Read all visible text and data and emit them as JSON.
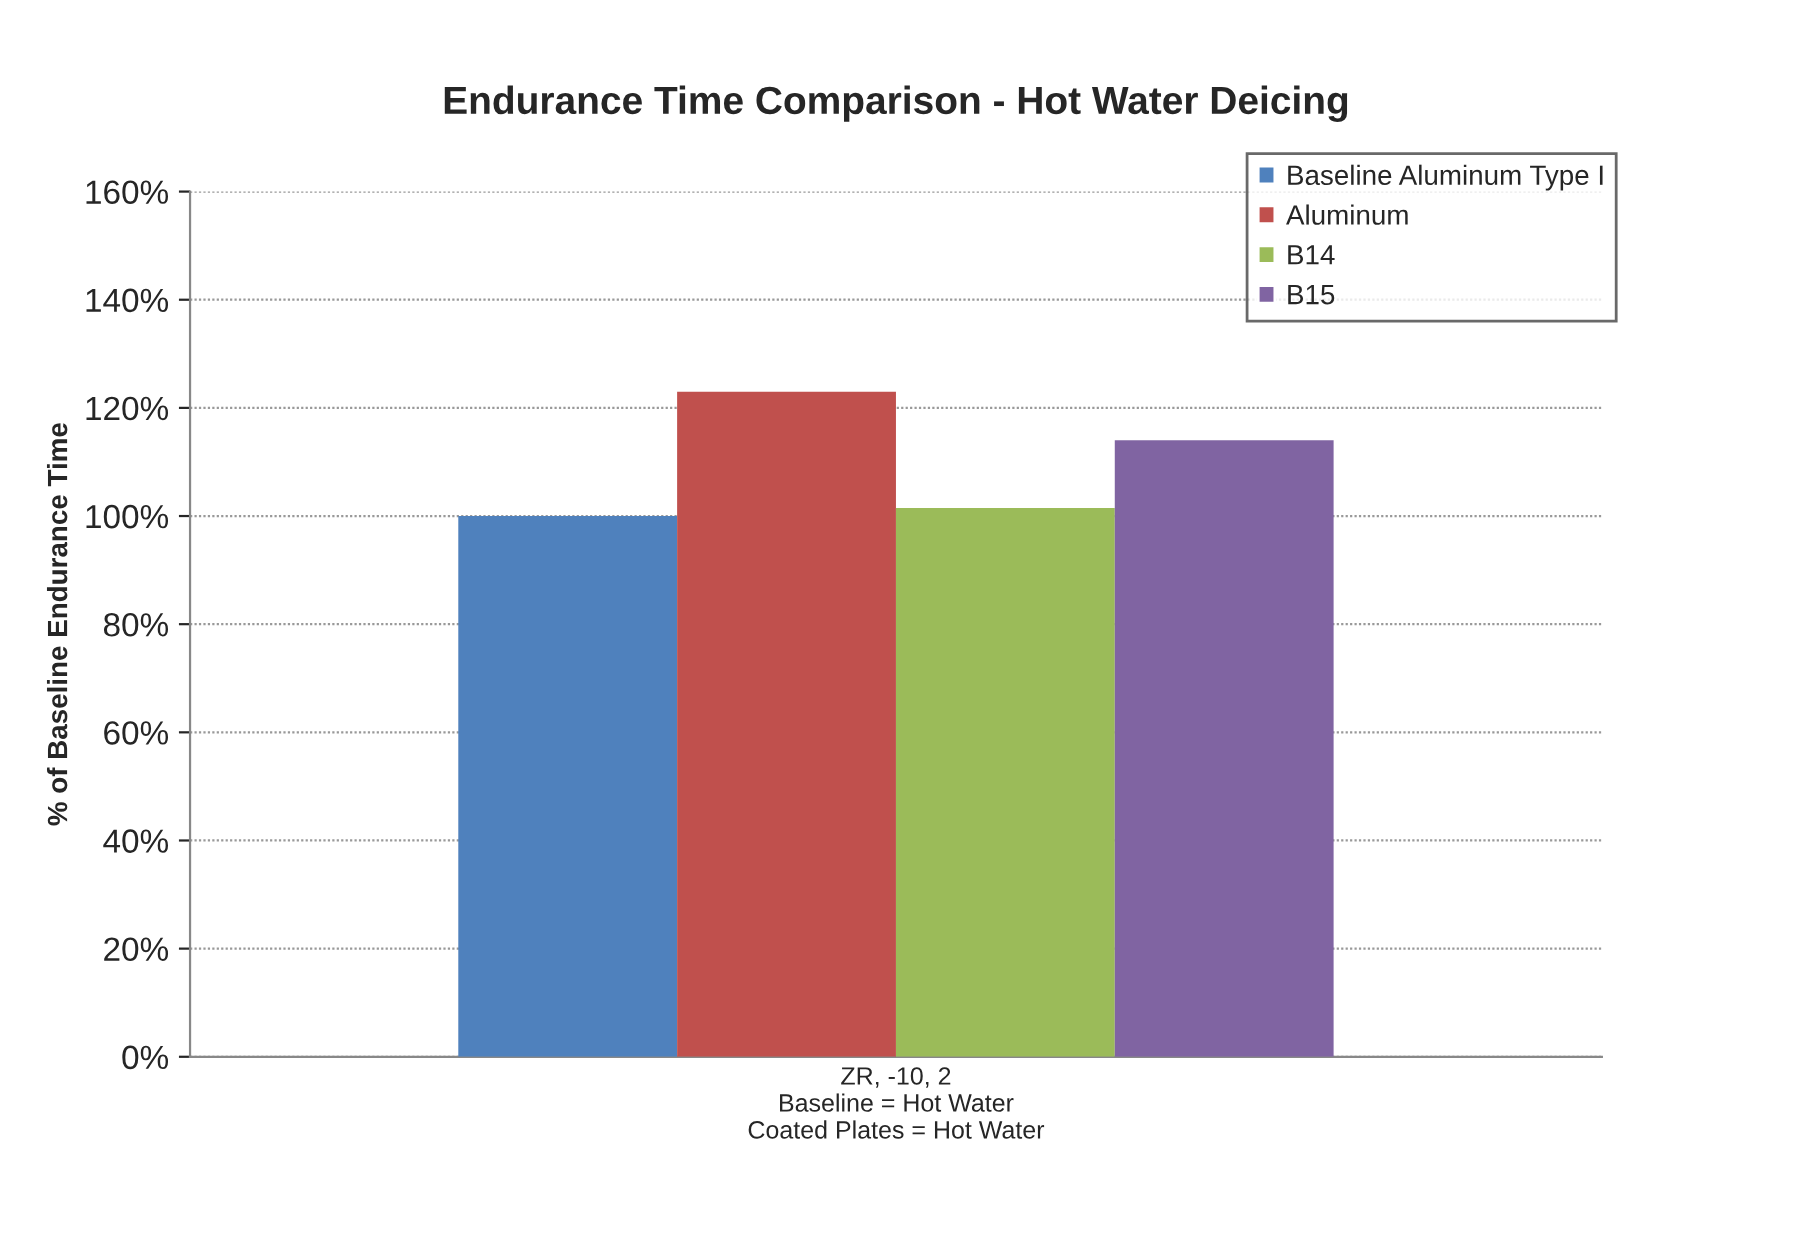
{
  "chart_data": {
    "type": "bar",
    "title": "Endurance Time Comparison - Hot Water Deicing",
    "ylabel": "% of Baseline Endurance Time",
    "categories": [
      "ZR, -10, 2\nBaseline = Hot Water\nCoated Plates = Hot Water"
    ],
    "series": [
      {
        "name": "Baseline Aluminum Type I",
        "color": "#4f81bd",
        "values": [
          100
        ]
      },
      {
        "name": "Aluminum",
        "color": "#c0504d",
        "values": [
          123
        ]
      },
      {
        "name": "B14",
        "color": "#9bbb59",
        "values": [
          101.5
        ]
      },
      {
        "name": "B15",
        "color": "#8064a2",
        "values": [
          114
        ]
      }
    ],
    "ylim": [
      0,
      160
    ],
    "yticks": [
      {
        "value": 0,
        "label": "0%"
      },
      {
        "value": 20,
        "label": "20%"
      },
      {
        "value": 40,
        "label": "40%"
      },
      {
        "value": 60,
        "label": "60%"
      },
      {
        "value": 80,
        "label": "80%"
      },
      {
        "value": 100,
        "label": "100%"
      },
      {
        "value": 120,
        "label": "120%"
      },
      {
        "value": 140,
        "label": "140%"
      },
      {
        "value": 160,
        "label": "160%"
      }
    ],
    "grid": "y",
    "legend": "top right"
  }
}
